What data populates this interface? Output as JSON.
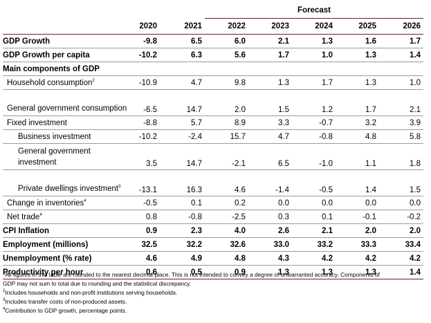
{
  "forecast_label": "Forecast",
  "years": [
    "2020",
    "2021",
    "2022",
    "2023",
    "2024",
    "2025",
    "2026"
  ],
  "rows": [
    {
      "label": "GDP Growth",
      "sup": "",
      "values": [
        "-9.8",
        "6.5",
        "6.0",
        "2.1",
        "1.3",
        "1.6",
        "1.7"
      ]
    },
    {
      "label": "GDP Growth per capita",
      "sup": "",
      "values": [
        "-10.2",
        "6.3",
        "5.6",
        "1.7",
        "1.0",
        "1.3",
        "1.4"
      ]
    },
    {
      "label": "Main components of GDP",
      "sup": "",
      "values": []
    },
    {
      "label": "Household consumption",
      "sup": "2",
      "values": [
        "-10.9",
        "4.7",
        "9.8",
        "1.3",
        "1.7",
        "1.3",
        "1.0"
      ]
    },
    {
      "label": "General government consumption",
      "sup": "",
      "values": [
        "-6.5",
        "14.7",
        "2.0",
        "1.5",
        "1.2",
        "1.7",
        "2.1"
      ]
    },
    {
      "label": "Fixed investment",
      "sup": "",
      "values": [
        "-8.8",
        "5.7",
        "8.9",
        "3.3",
        "-0.7",
        "3.2",
        "3.9"
      ]
    },
    {
      "label": "Business investment",
      "sup": "",
      "values": [
        "-10.2",
        "-2.4",
        "15.7",
        "4.7",
        "-0.8",
        "4.8",
        "5.8"
      ]
    },
    {
      "label": "General government investment",
      "sup": "",
      "values": [
        "3.5",
        "14.7",
        "-2.1",
        "6.5",
        "-1.0",
        "1.1",
        "1.8"
      ]
    },
    {
      "label": "Private dwellings investment",
      "sup": "3",
      "values": [
        "-13.1",
        "16.3",
        "4.6",
        "-1.4",
        "-0.5",
        "1.4",
        "1.5"
      ]
    },
    {
      "label": "Change in inventories",
      "sup": "4",
      "values": [
        "-0.5",
        "0.1",
        "0.2",
        "0.0",
        "0.0",
        "0.0",
        "0.0"
      ]
    },
    {
      "label": "Net trade",
      "sup": "4",
      "values": [
        "0.8",
        "-0.8",
        "-2.5",
        "0.3",
        "0.1",
        "-0.1",
        "-0.2"
      ]
    },
    {
      "label": "CPI Inflation",
      "sup": "",
      "values": [
        "0.9",
        "2.3",
        "4.0",
        "2.6",
        "2.1",
        "2.0",
        "2.0"
      ]
    },
    {
      "label": "Employment (millions)",
      "sup": "",
      "values": [
        "32.5",
        "32.2",
        "32.6",
        "33.0",
        "33.2",
        "33.3",
        "33.4"
      ]
    },
    {
      "label": "Unemployment (% rate)",
      "sup": "",
      "values": [
        "4.6",
        "4.9",
        "4.8",
        "4.3",
        "4.2",
        "4.2",
        "4.2"
      ]
    },
    {
      "label": "Productivity per hour",
      "sup": "",
      "values": [
        "0.6",
        "0.5",
        "0.9",
        "1.3",
        "1.3",
        "1.3",
        "1.4"
      ]
    }
  ],
  "footnotes": [
    {
      "mark": "1",
      "text": "All figures in this table are rounded to the nearest decimal place. This is not intended to convey a degree of unwarranted accuracy. Components of"
    },
    {
      "mark": "",
      "text": "GDP may not sum to total due to rounding and the statistical discrepancy."
    },
    {
      "mark": "2",
      "text": "Includes households and non-profit institutions serving households."
    },
    {
      "mark": "3",
      "text": "Includes transfer costs of non-produced assets."
    },
    {
      "mark": "4",
      "text": "Contribution to GDP growth, percentage points."
    }
  ],
  "colors": {
    "rule_dark": "#7a1a1a",
    "rule_light": "#9a9a9a"
  }
}
